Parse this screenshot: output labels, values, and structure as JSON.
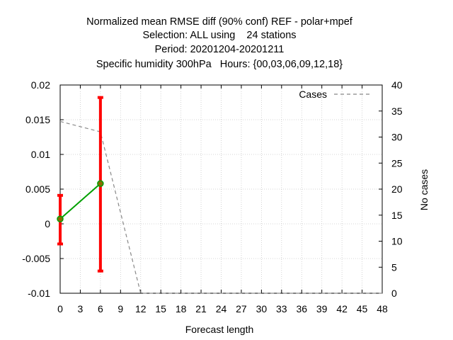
{
  "chart_data": {
    "type": "line",
    "title_lines": [
      "Normalized mean RMSE diff (90% conf) REF - polar+mpef",
      "Selection: ALL using    24 stations",
      "Period: 20201204-20201211",
      "Specific humidity 300hPa   Hours: {00,03,06,09,12,18}"
    ],
    "xlabel": "Forecast length",
    "ylabel_right": "No cases",
    "x_ticks": [
      "0",
      "3",
      "6",
      "9",
      "12",
      "15",
      "18",
      "21",
      "24",
      "27",
      "30",
      "33",
      "36",
      "39",
      "42",
      "45",
      "48"
    ],
    "y_ticks_left": [
      "0.02",
      "0.015",
      "0.01",
      "0.005",
      "0",
      "-0.005",
      "-0.01"
    ],
    "y_ticks_right": [
      "40",
      "35",
      "30",
      "25",
      "20",
      "15",
      "10",
      "5",
      "0"
    ],
    "xlim": [
      0,
      48
    ],
    "ylim_left": [
      -0.01,
      0.02
    ],
    "ylim_right": [
      0,
      40
    ],
    "grid": true,
    "legend_position": "top-right",
    "series": [
      {
        "type": "line",
        "axis": "left",
        "color": "#00a000",
        "marker_color": "#8a6a00",
        "x": [
          0,
          6
        ],
        "y": [
          0.0007,
          0.0058
        ]
      },
      {
        "type": "errorbar",
        "axis": "left",
        "color": "#ff0000",
        "x": [
          0,
          6
        ],
        "low": [
          -0.0029,
          -0.0068
        ],
        "high": [
          0.0041,
          0.0182
        ]
      },
      {
        "type": "line",
        "axis": "right",
        "name": "Cases",
        "color": "#888888",
        "dashed": true,
        "x": [
          0,
          6,
          12,
          48
        ],
        "y": [
          33,
          31,
          0,
          0
        ]
      }
    ]
  }
}
